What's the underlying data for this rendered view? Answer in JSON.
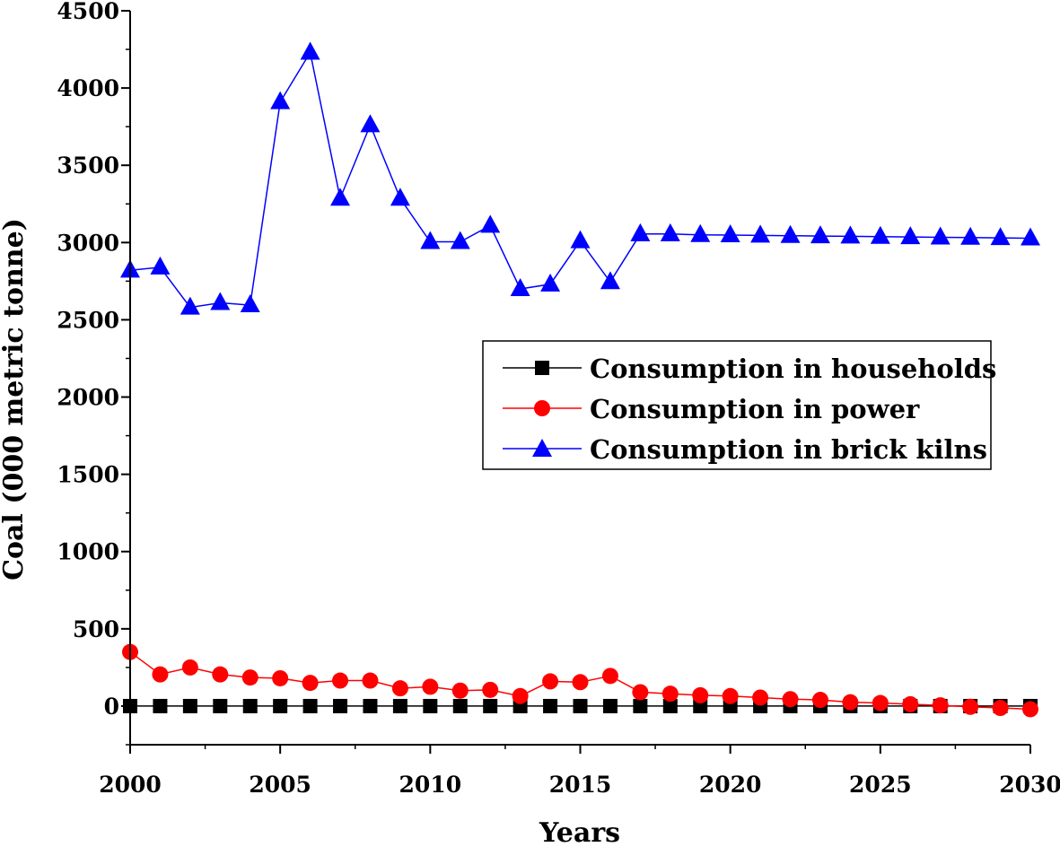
{
  "chart_data": {
    "type": "line",
    "title": "",
    "xlabel": "Years",
    "ylabel": "Coal (000 metric tonne)",
    "xlim": [
      2000,
      2030
    ],
    "ylim": [
      -250,
      4500
    ],
    "x_ticks": [
      2000,
      2005,
      2010,
      2015,
      2020,
      2025,
      2030
    ],
    "y_ticks": [
      0,
      500,
      1000,
      1500,
      2000,
      2500,
      3000,
      3500,
      4000,
      4500
    ],
    "grid": false,
    "legend_position": "center-right",
    "x": [
      2000,
      2001,
      2002,
      2003,
      2004,
      2005,
      2006,
      2007,
      2008,
      2009,
      2010,
      2011,
      2012,
      2013,
      2014,
      2015,
      2016,
      2017,
      2018,
      2019,
      2020,
      2021,
      2022,
      2023,
      2024,
      2025,
      2026,
      2027,
      2028,
      2029,
      2030
    ],
    "series": [
      {
        "name": "Consumption in households",
        "color": "#000000",
        "marker": "square",
        "values": [
          0,
          0,
          0,
          0,
          0,
          0,
          0,
          0,
          0,
          0,
          0,
          0,
          0,
          0,
          0,
          0,
          0,
          0,
          0,
          0,
          0,
          0,
          0,
          0,
          0,
          0,
          0,
          0,
          0,
          0,
          0
        ]
      },
      {
        "name": "Consumption in power",
        "color": "#ff0000",
        "marker": "circle",
        "values": [
          350,
          205,
          250,
          205,
          185,
          180,
          150,
          165,
          165,
          115,
          125,
          100,
          105,
          65,
          160,
          155,
          195,
          90,
          80,
          70,
          65,
          55,
          45,
          40,
          25,
          20,
          12,
          5,
          -5,
          -12,
          -20
        ]
      },
      {
        "name": "Consumption in brick kilns",
        "color": "#0000ff",
        "marker": "triangle",
        "values": [
          2820,
          2840,
          2580,
          2610,
          2595,
          3910,
          4230,
          3285,
          3760,
          3285,
          3005,
          3005,
          3110,
          2700,
          2730,
          3010,
          2745,
          3055,
          3055,
          3050,
          3048,
          3046,
          3044,
          3042,
          3040,
          3038,
          3036,
          3034,
          3032,
          3030,
          3028
        ]
      }
    ]
  }
}
